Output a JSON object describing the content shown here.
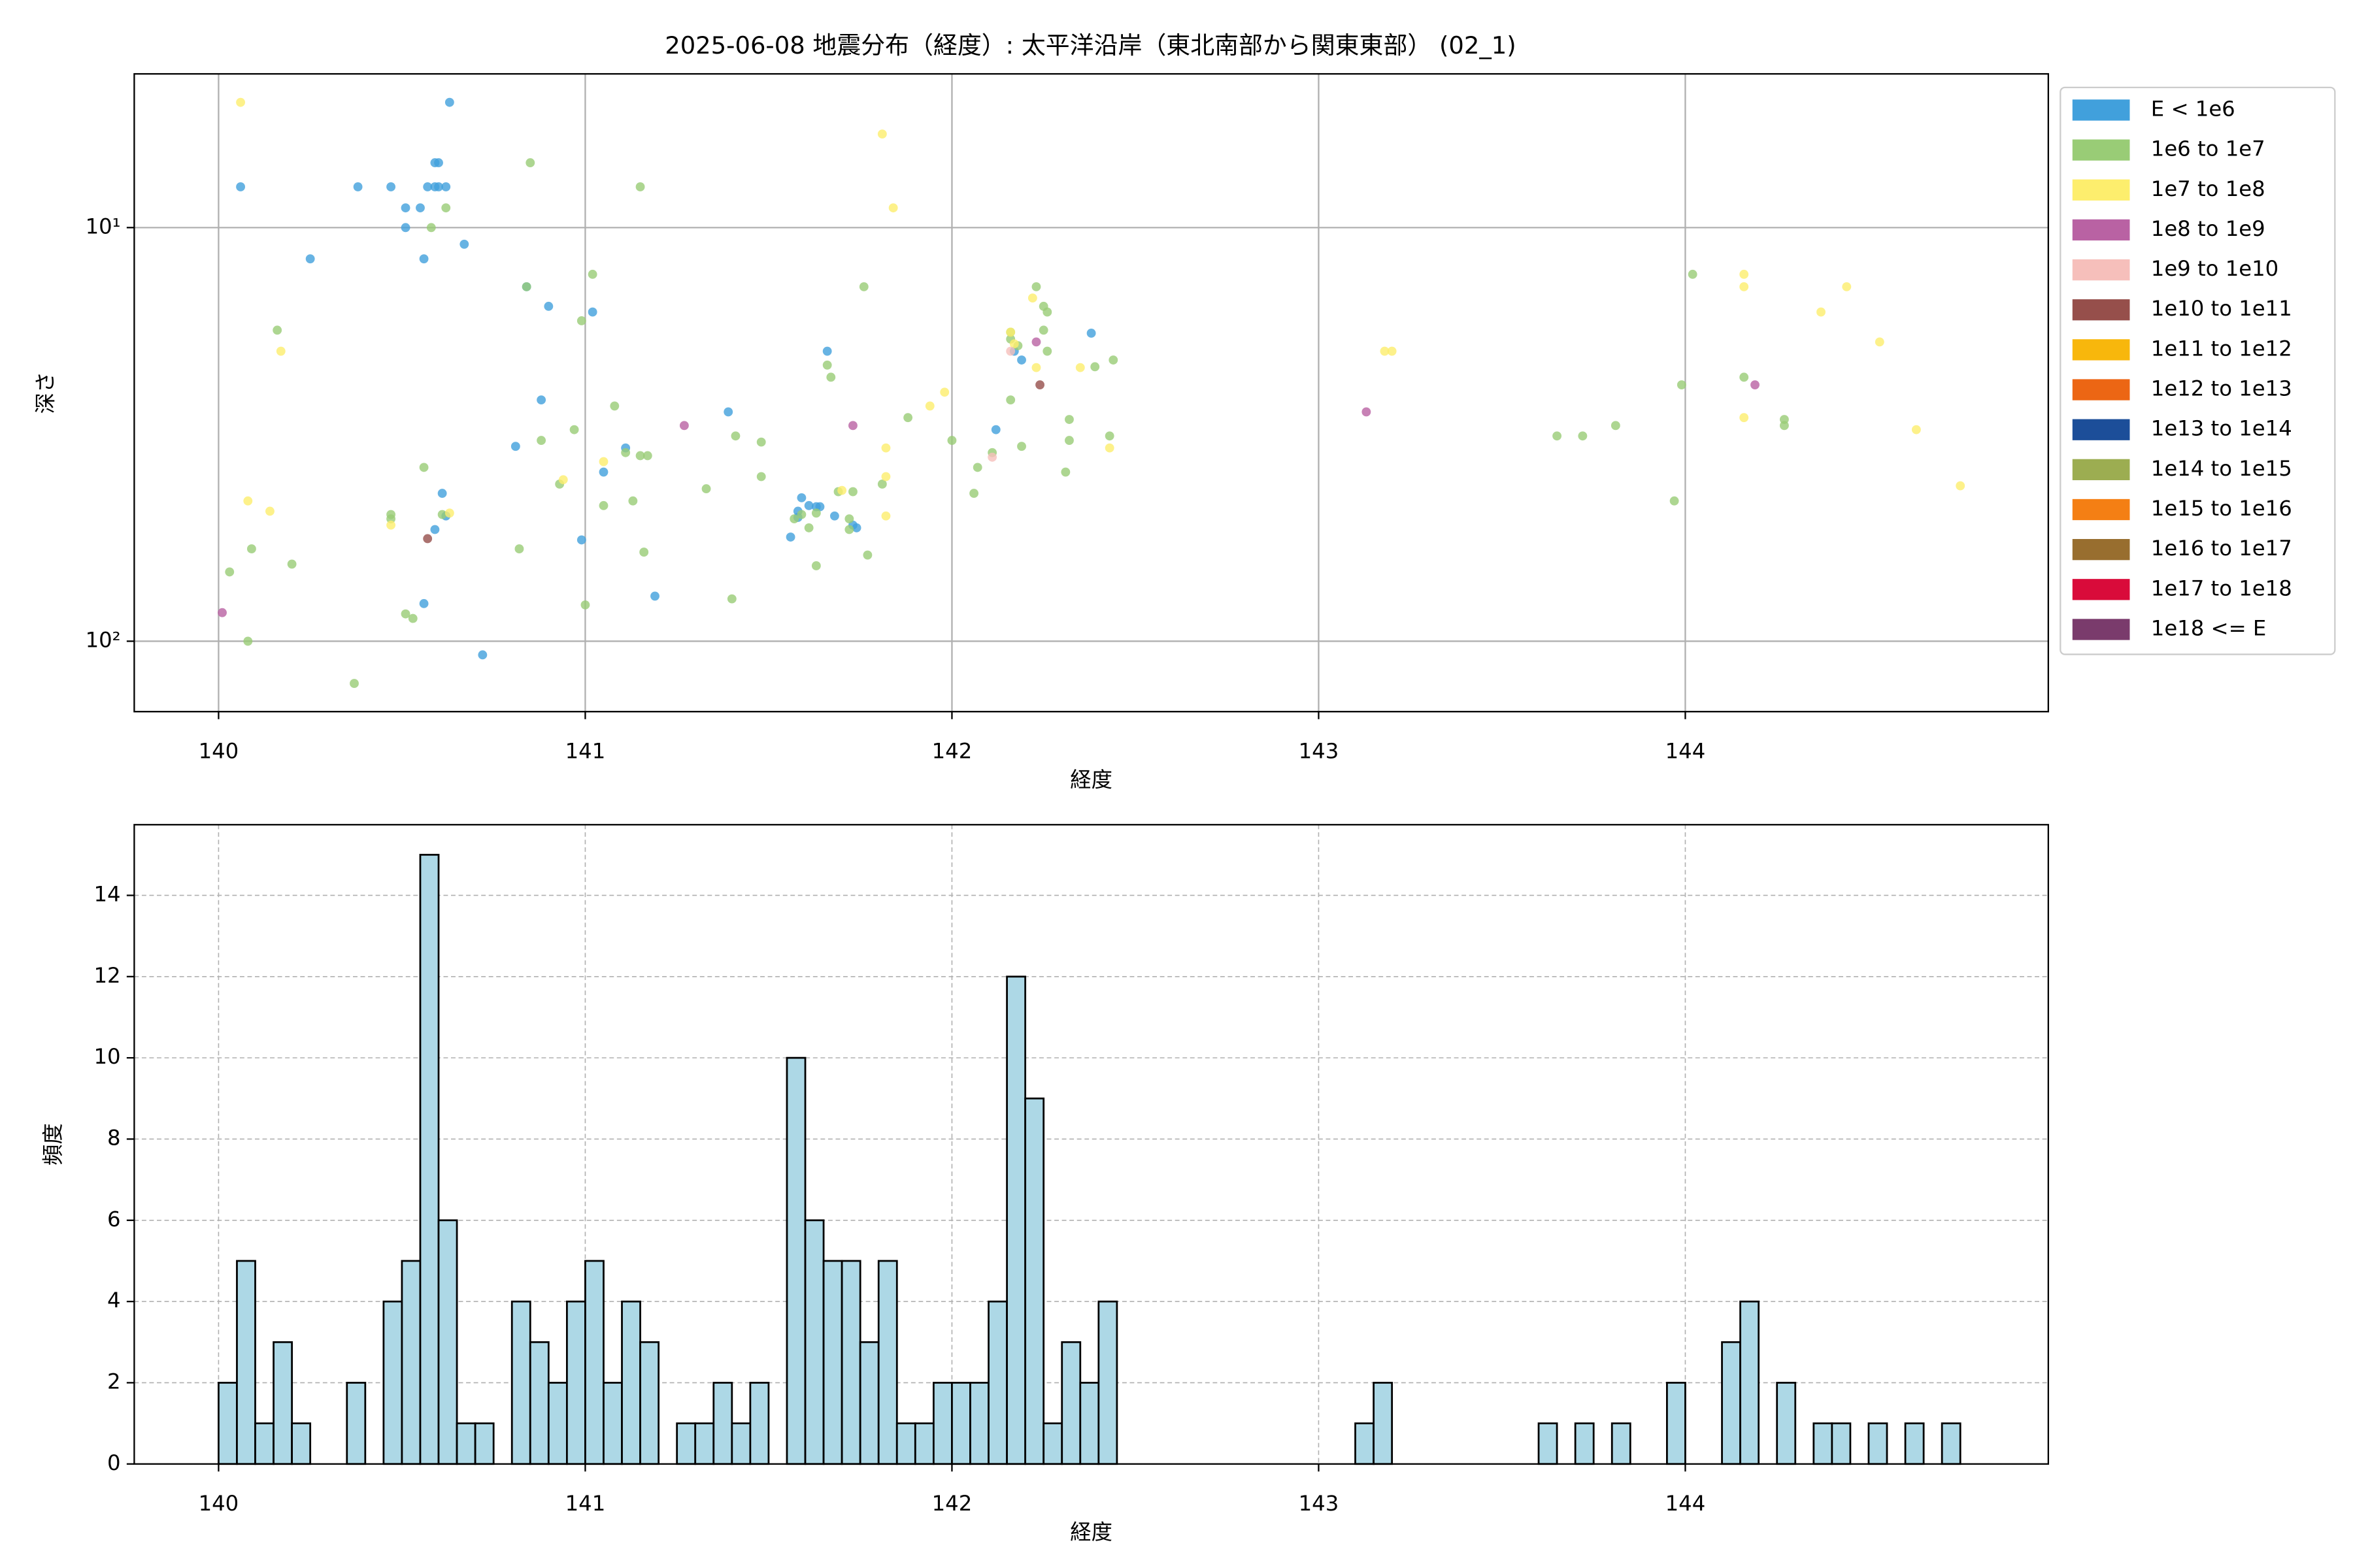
{
  "chart_data": [
    {
      "type": "scatter",
      "title": "2025-06-08 地震分布（経度）: 太平洋沿岸（東北南部から関東東部） (02_1)",
      "xlabel": "経度",
      "ylabel": "深さ",
      "xlim": [
        139.77,
        144.99
      ],
      "xticks": [
        140,
        141,
        142,
        143,
        144
      ],
      "ylim": [
        4.25,
        148
      ],
      "yscale": "log",
      "y_inverted": true,
      "yticks": [
        {
          "value": 10,
          "label": "10¹"
        },
        {
          "value": 100,
          "label": "10²"
        }
      ],
      "grid": true,
      "legend": "outside right",
      "series": [
        {
          "name": "E < 1e6",
          "color": "#41a0dc",
          "x": [
            140.06,
            140.38,
            140.47,
            140.51,
            140.55,
            140.51,
            140.56,
            140.59,
            140.6,
            140.57,
            140.59,
            140.6,
            140.62,
            140.63,
            140.67,
            140.25,
            140.84,
            140.9,
            141.02,
            140.88,
            140.81,
            141.05,
            141.11,
            140.61,
            140.62,
            140.59,
            140.99,
            140.56,
            141.19,
            140.72,
            141.39,
            141.59,
            141.61,
            141.63,
            141.64,
            141.58,
            141.58,
            141.56,
            141.68,
            141.73,
            141.74,
            141.66,
            142.12,
            142.17,
            142.19,
            142.38
          ],
          "values": [
            7.97,
            7.97,
            7.97,
            8.96,
            8.96,
            10,
            11.9,
            6.97,
            6.97,
            7.97,
            7.97,
            7.97,
            7.97,
            4.98,
            10.97,
            11.9,
            13.9,
            15.5,
            16.0,
            26.1,
            33.8,
            39.0,
            34.1,
            43.9,
            49.8,
            53.7,
            56.9,
            81.1,
            77.8,
            107.9,
            27.9,
            45.0,
            47.0,
            47.3,
            47.3,
            48.5,
            50.2,
            56.0,
            49.8,
            52.4,
            53.2,
            19.9,
            30.8,
            19.9,
            20.9,
            18.0
          ]
        },
        {
          "name": "1e6 to 1e7",
          "color": "#99cc76",
          "x": [
            140.85,
            141.15,
            140.62,
            140.58,
            141.02,
            140.84,
            140.16,
            140.99,
            141.08,
            140.88,
            140.97,
            140.56,
            141.11,
            141.15,
            141.17,
            141.13,
            141.05,
            140.93,
            140.47,
            140.47,
            140.61,
            140.09,
            140.03,
            140.2,
            141.16,
            140.82,
            140.51,
            140.53,
            141.0,
            141.4,
            140.08,
            140.37,
            141.33,
            141.41,
            141.48,
            141.48,
            141.76,
            141.66,
            141.67,
            141.69,
            141.73,
            141.72,
            141.72,
            141.77,
            141.81,
            141.88,
            142.0,
            142.07,
            142.06,
            142.11,
            142.16,
            142.16,
            142.16,
            142.18,
            142.23,
            142.25,
            142.26,
            142.25,
            142.26,
            142.19,
            142.32,
            142.32,
            142.31,
            142.39,
            142.44,
            142.43,
            143.99,
            143.97,
            144.02,
            144.16,
            144.27,
            144.27,
            143.81,
            143.72,
            143.65,
            141.63,
            141.59,
            141.57,
            141.61,
            141.63
          ],
          "values": [
            6.97,
            7.97,
            8.96,
            10,
            12.97,
            13.9,
            17.7,
            16.8,
            27.0,
            32.7,
            30.8,
            38.0,
            35.0,
            35.6,
            35.6,
            45.8,
            47.0,
            41.7,
            49.4,
            50.6,
            49.4,
            59.8,
            68.0,
            65.1,
            60.9,
            59.8,
            85.9,
            88.1,
            81.7,
            79.0,
            100,
            126.5,
            42.8,
            31.9,
            33.0,
            40.0,
            13.9,
            21.5,
            23.0,
            43.5,
            43.5,
            50.6,
            53.7,
            61.9,
            41.7,
            28.8,
            32.7,
            38.0,
            43.9,
            35.0,
            26.1,
            17.9,
            18.6,
            19.3,
            13.9,
            15.5,
            16.0,
            17.7,
            19.9,
            33.8,
            29.1,
            32.7,
            39.0,
            21.7,
            20.9,
            31.9,
            24.0,
            45.8,
            12.97,
            23.0,
            29.1,
            30.1,
            30.1,
            31.9,
            31.9,
            49.0,
            49.4,
            50.6,
            53.2,
            65.7
          ]
        },
        {
          "name": "1e7 to 1e8",
          "color": "#fdee6d",
          "x": [
            140.06,
            141.81,
            141.84,
            140.08,
            140.14,
            140.17,
            140.47,
            140.63,
            140.94,
            141.05,
            141.7,
            141.82,
            141.82,
            141.82,
            141.94,
            141.98,
            142.16,
            142.22,
            142.23,
            142.35,
            144.16,
            144.16,
            144.16,
            143.18,
            143.2,
            144.37,
            144.44,
            144.53,
            144.75,
            144.63,
            142.43,
            142.17
          ],
          "values": [
            4.98,
            5.94,
            8.96,
            45.8,
            48.5,
            19.9,
            52.4,
            49.0,
            40.7,
            36.8,
            43.2,
            34.1,
            40.0,
            49.8,
            27.0,
            25.0,
            17.9,
            14.8,
            21.8,
            21.8,
            12.97,
            13.9,
            28.8,
            19.9,
            19.9,
            16.0,
            13.9,
            18.9,
            42.1,
            30.8,
            34.1,
            19.1
          ]
        },
        {
          "name": "1e8 to 1e9",
          "color": "#b962a3",
          "x": [
            140.01,
            141.27,
            141.73,
            142.23,
            143.13,
            144.19
          ],
          "values": [
            85.3,
            30.1,
            30.1,
            18.9,
            27.9,
            24.0
          ]
        },
        {
          "name": "1e9 to 1e10",
          "color": "#f6bfbb",
          "x": [
            142.16,
            142.11
          ],
          "values": [
            19.9,
            35.9
          ]
        },
        {
          "name": "1e10 to 1e11",
          "color": "#964f4b",
          "x": [
            140.57,
            142.24
          ],
          "values": [
            56.5,
            24.0
          ]
        },
        {
          "name": "1e11 to 1e12",
          "color": "#f8b70c",
          "x": [],
          "values": []
        },
        {
          "name": "1e12 to 1e13",
          "color": "#ec6614",
          "x": [],
          "values": []
        },
        {
          "name": "1e13 to 1e14",
          "color": "#1c4e99",
          "x": [],
          "values": []
        },
        {
          "name": "1e14 to 1e15",
          "color": "#9cad51",
          "x": [],
          "values": []
        },
        {
          "name": "1e15 to 1e16",
          "color": "#f47f14",
          "x": [],
          "values": []
        },
        {
          "name": "1e16 to 1e17",
          "color": "#986e2f",
          "x": [],
          "values": []
        },
        {
          "name": "1e17 to 1e18",
          "color": "#d90b3a",
          "x": [],
          "values": []
        },
        {
          "name": "1e18 <= E",
          "color": "#7a3b6c",
          "x": [],
          "values": []
        }
      ]
    },
    {
      "type": "histogram",
      "xlabel": "経度",
      "ylabel": "頻度",
      "xlim": [
        139.77,
        144.99
      ],
      "xticks": [
        140,
        141,
        142,
        143,
        144
      ],
      "ylim": [
        0,
        15.74
      ],
      "yticks": [
        0,
        2,
        4,
        6,
        8,
        10,
        12,
        14
      ],
      "grid": true,
      "color": "#add8e6",
      "edgecolor": "#000000",
      "bins": [
        140.0,
        140.05,
        140.1,
        140.15,
        140.2,
        140.25,
        140.3,
        140.35,
        140.4,
        140.45,
        140.5,
        140.55,
        140.6,
        140.65,
        140.7,
        140.75,
        140.8,
        140.85,
        140.9,
        140.95,
        141.0,
        141.05,
        141.1,
        141.15,
        141.2,
        141.25,
        141.3,
        141.35,
        141.4,
        141.45,
        141.5,
        141.55,
        141.6,
        141.65,
        141.7,
        141.75,
        141.8,
        141.85,
        141.9,
        141.95,
        142.0,
        142.05,
        142.1,
        142.15,
        142.2,
        142.25,
        142.3,
        142.35,
        142.4,
        142.45,
        142.5,
        142.55,
        142.6,
        142.65,
        142.7,
        142.75,
        142.8,
        142.85,
        142.9,
        142.95,
        143.0,
        143.05,
        143.1,
        143.15,
        143.2,
        143.25,
        143.3,
        143.35,
        143.4,
        143.45,
        143.5,
        143.55,
        143.6,
        143.65,
        143.7,
        143.75,
        143.8,
        143.85,
        143.9,
        143.95,
        144.0,
        144.05,
        144.1,
        144.15,
        144.2,
        144.25,
        144.3,
        144.35,
        144.4,
        144.45,
        144.5,
        144.55,
        144.6,
        144.65,
        144.7,
        144.75
      ],
      "values": [
        2,
        5,
        1,
        3,
        1,
        0,
        0,
        2,
        0,
        4,
        5,
        15,
        6,
        1,
        1,
        0,
        4,
        3,
        2,
        4,
        5,
        2,
        4,
        3,
        0,
        1,
        1,
        2,
        1,
        2,
        0,
        10,
        6,
        5,
        5,
        3,
        5,
        1,
        1,
        2,
        2,
        2,
        4,
        12,
        9,
        1,
        3,
        2,
        4,
        0,
        0,
        0,
        0,
        0,
        0,
        0,
        0,
        0,
        0,
        0,
        0,
        0,
        1,
        2,
        0,
        0,
        0,
        0,
        0,
        0,
        0,
        0,
        1,
        0,
        1,
        0,
        1,
        0,
        0,
        2,
        0,
        0,
        3,
        4,
        0,
        2,
        0,
        1,
        1,
        0,
        1,
        0,
        1,
        0,
        1
      ]
    }
  ]
}
